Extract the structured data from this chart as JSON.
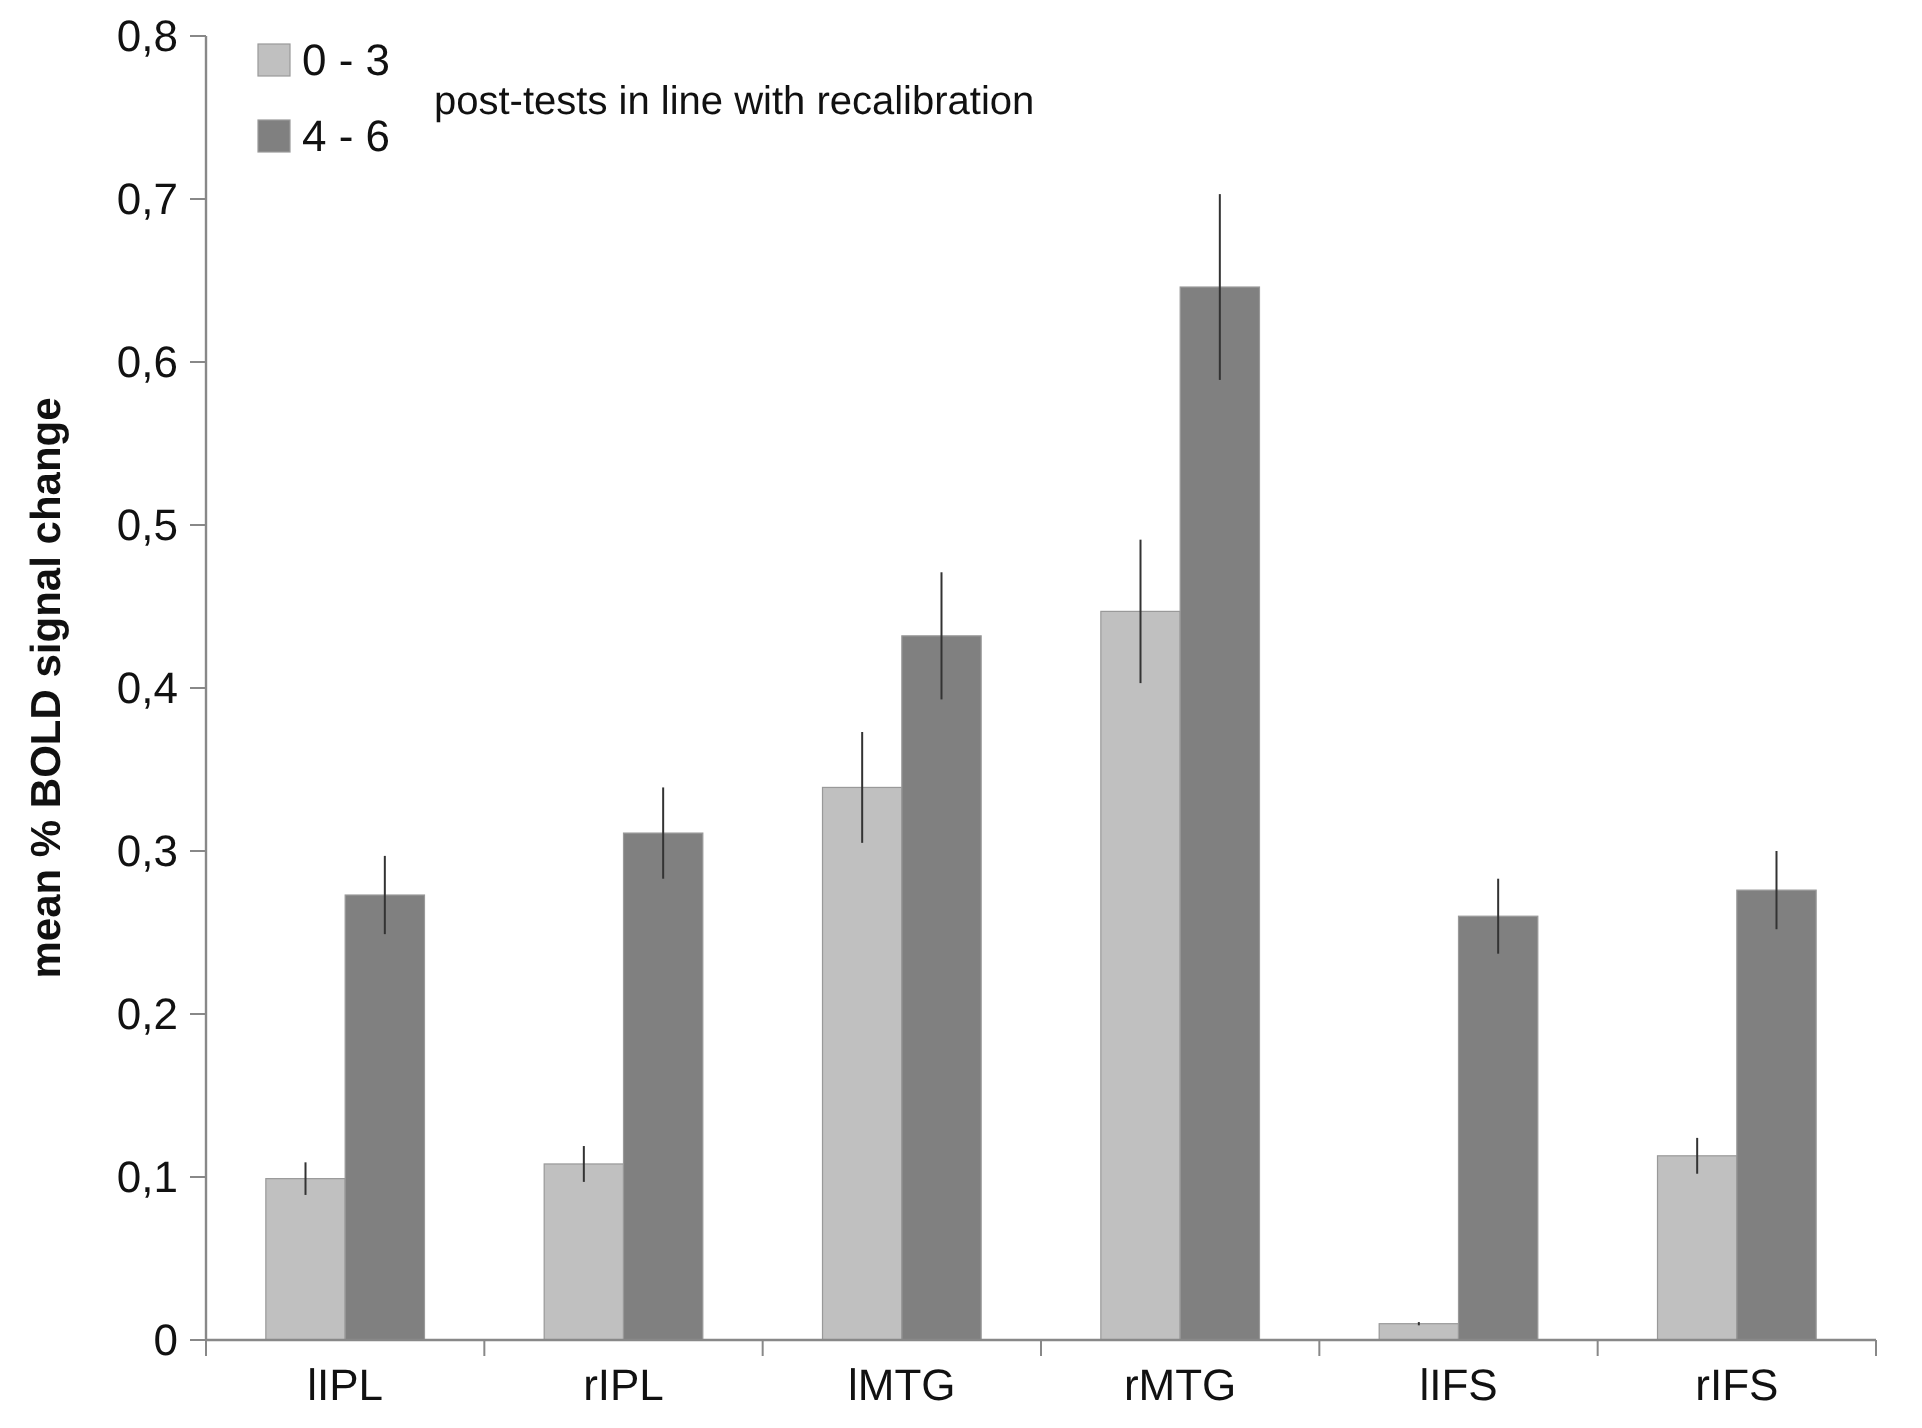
{
  "chart_data": {
    "type": "bar",
    "ylabel": "mean % BOLD signal change",
    "legend_title": "post-tests in line with recalibration",
    "categories": [
      "lIPL",
      "rIPL",
      "lMTG",
      "rMTG",
      "lIFS",
      "rIFS"
    ],
    "series": [
      {
        "name": "0 - 3",
        "color": "#c0c0c0",
        "values": [
          0.099,
          0.108,
          0.339,
          0.447,
          0.01,
          0.113
        ],
        "errors": [
          0.01,
          0.011,
          0.034,
          0.044,
          0.001,
          0.011
        ]
      },
      {
        "name": "4 - 6",
        "color": "#808080",
        "values": [
          0.273,
          0.311,
          0.432,
          0.646,
          0.26,
          0.276
        ],
        "errors": [
          0.024,
          0.028,
          0.039,
          0.057,
          0.023,
          0.024
        ]
      }
    ],
    "ylim": [
      0,
      0.8
    ],
    "yticks": [
      {
        "value": 0,
        "label": "0"
      },
      {
        "value": 0.1,
        "label": "0,1"
      },
      {
        "value": 0.2,
        "label": "0,2"
      },
      {
        "value": 0.3,
        "label": "0,3"
      },
      {
        "value": 0.4,
        "label": "0,4"
      },
      {
        "value": 0.5,
        "label": "0,5"
      },
      {
        "value": 0.6,
        "label": "0,6"
      },
      {
        "value": 0.7,
        "label": "0,7"
      },
      {
        "value": 0.8,
        "label": "0,8"
      }
    ],
    "legend": "top left"
  }
}
